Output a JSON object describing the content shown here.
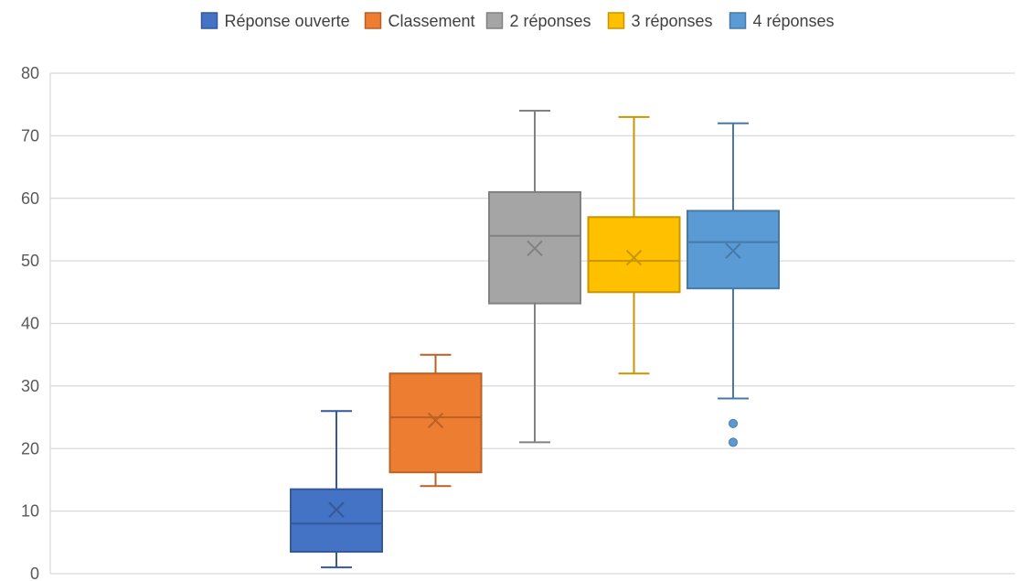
{
  "chart_data": {
    "type": "boxplot",
    "title": "",
    "xlabel": "",
    "ylabel": "",
    "ylim": [
      0,
      80
    ],
    "yticks": [
      0,
      10,
      20,
      30,
      40,
      50,
      60,
      70,
      80
    ],
    "grid": true,
    "legend_position": "top",
    "series": [
      {
        "name": "Réponse ouverte",
        "color": "#4472C4",
        "min": 1,
        "q1": 3.5,
        "median": 8,
        "mean": 10.2,
        "q3": 13.5,
        "max": 26,
        "outliers": []
      },
      {
        "name": "Classement",
        "color": "#ED7D31",
        "min": 14,
        "q1": 16.2,
        "median": 25,
        "mean": 24.5,
        "q3": 32,
        "max": 35,
        "outliers": []
      },
      {
        "name": "2 réponses",
        "color": "#A5A5A5",
        "min": 21,
        "q1": 43.2,
        "median": 54,
        "mean": 52,
        "q3": 61,
        "max": 74,
        "outliers": []
      },
      {
        "name": "3 réponses",
        "color": "#FFC000",
        "min": 32,
        "q1": 45,
        "median": 50,
        "mean": 50.5,
        "q3": 57,
        "max": 73,
        "outliers": []
      },
      {
        "name": "4 réponses",
        "color": "#5B9BD5",
        "min": 28,
        "q1": 45.6,
        "median": 53,
        "mean": 51.6,
        "q3": 58,
        "max": 72,
        "outliers": [
          24,
          21
        ]
      }
    ]
  }
}
